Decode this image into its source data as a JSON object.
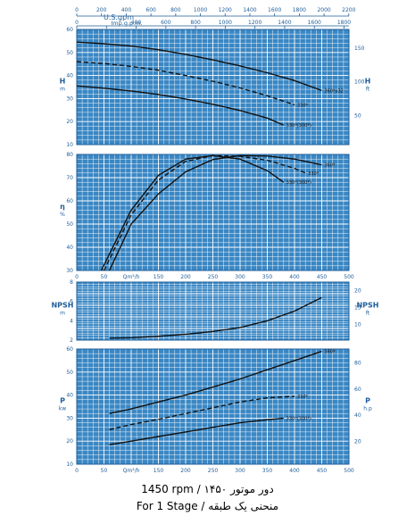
{
  "colors": {
    "panel_bg": "#3a87c4",
    "grid": "#ffffff",
    "axis_text": "#1f5e9a",
    "curve": "#111111"
  },
  "top_scales": {
    "usgpm": {
      "label": "U.S.gpm",
      "ticks": [
        "0",
        "200",
        "400",
        "600",
        "800",
        "1000",
        "1200",
        "1400",
        "1600",
        "1800",
        "2000",
        "2200"
      ]
    },
    "impgpm": {
      "label": "Imp.g.p.m.",
      "ticks": [
        "0",
        "200",
        "400",
        "600",
        "800",
        "1000",
        "1200",
        "1400",
        "1600",
        "1800"
      ]
    }
  },
  "qlabel": "Qm³/h",
  "captions": {
    "line1": "1450 rpm / دور موتور ۱۴۵۰",
    "line2": "For 1 Stage / منحنی یک طبقه"
  },
  "chart_data": [
    {
      "type": "line",
      "name": "head",
      "xlim": [
        0,
        500
      ],
      "ylim": [
        10,
        60
      ],
      "yticks": [
        10,
        20,
        30,
        40,
        50,
        60
      ],
      "ylabel_left": "H\nm",
      "ylabel_right": "H\nft",
      "ryticks": [
        50,
        100,
        150
      ],
      "series": [
        {
          "name": "360*x32",
          "dash": false,
          "x": [
            0,
            50,
            100,
            150,
            200,
            250,
            300,
            350,
            400,
            450
          ],
          "y": [
            54.5,
            53.8,
            52.8,
            51.2,
            49.2,
            46.8,
            44.2,
            41.2,
            37.8,
            33.5
          ]
        },
        {
          "name": "330*",
          "dash": true,
          "x": [
            0,
            50,
            100,
            150,
            200,
            250,
            300,
            350,
            400
          ],
          "y": [
            46,
            45.2,
            44,
            42.3,
            40,
            37.5,
            34.6,
            31.2,
            27.3
          ]
        },
        {
          "name": "330*(300*)",
          "dash": false,
          "x": [
            0,
            50,
            100,
            150,
            200,
            250,
            300,
            350,
            380
          ],
          "y": [
            35.5,
            34.5,
            33.3,
            31.8,
            29.8,
            27.5,
            24.8,
            21.5,
            18.5
          ]
        }
      ]
    },
    {
      "type": "line",
      "name": "efficiency",
      "xlim": [
        0,
        500
      ],
      "ylim": [
        30,
        80
      ],
      "yticks": [
        30,
        40,
        50,
        60,
        70,
        80
      ],
      "ylabel_left": "η\n%",
      "series": [
        {
          "name": "360*",
          "dash": false,
          "x": [
            60,
            100,
            150,
            200,
            250,
            300,
            350,
            400,
            450
          ],
          "y": [
            30,
            50,
            63,
            72.5,
            77.8,
            79.5,
            79.3,
            78,
            75.5
          ]
        },
        {
          "name": "330*",
          "dash": true,
          "x": [
            50,
            100,
            150,
            200,
            250,
            300,
            350,
            400,
            420
          ],
          "y": [
            30,
            54,
            69,
            77,
            79.5,
            79.2,
            77.5,
            74,
            72
          ]
        },
        {
          "name": "330*(300*)",
          "dash": false,
          "x": [
            45,
            100,
            150,
            200,
            250,
            300,
            350,
            380
          ],
          "y": [
            30,
            56,
            71,
            78,
            79.5,
            78,
            73,
            68
          ]
        }
      ]
    },
    {
      "type": "line",
      "name": "npsh",
      "xlim": [
        0,
        500
      ],
      "ylim": [
        2,
        8
      ],
      "yticks": [
        2,
        4,
        6,
        8
      ],
      "ylabel_left": "NPSH\nm",
      "ylabel_right": "NPSH\nft",
      "ryticks": [
        10,
        15,
        20
      ],
      "series": [
        {
          "name": "NPSH",
          "dash": false,
          "x": [
            60,
            100,
            150,
            200,
            250,
            300,
            350,
            400,
            450
          ],
          "y": [
            2.2,
            2.25,
            2.4,
            2.6,
            2.9,
            3.3,
            4.0,
            5.0,
            6.4
          ]
        }
      ]
    },
    {
      "type": "line",
      "name": "power",
      "xlim": [
        0,
        500
      ],
      "ylim": [
        10,
        60
      ],
      "yticks": [
        10,
        20,
        30,
        40,
        50,
        60
      ],
      "ylabel_left": "P\nkw",
      "ylabel_right": "P\nh.p",
      "ryticks": [
        20,
        40,
        60,
        80
      ],
      "series": [
        {
          "name": "360*",
          "dash": false,
          "x": [
            60,
            100,
            150,
            200,
            250,
            300,
            350,
            400,
            450
          ],
          "y": [
            32,
            34,
            37,
            40,
            43.5,
            47,
            51,
            55,
            59
          ]
        },
        {
          "name": "330*",
          "dash": true,
          "x": [
            60,
            100,
            150,
            200,
            250,
            300,
            350,
            400
          ],
          "y": [
            25,
            27.2,
            29.5,
            32,
            34.5,
            37,
            38.8,
            39.5
          ]
        },
        {
          "name": "330*(300*)",
          "dash": false,
          "x": [
            60,
            100,
            150,
            200,
            250,
            300,
            350,
            380
          ],
          "y": [
            18.5,
            20,
            22,
            24,
            26,
            28,
            29.3,
            30
          ]
        }
      ]
    }
  ]
}
